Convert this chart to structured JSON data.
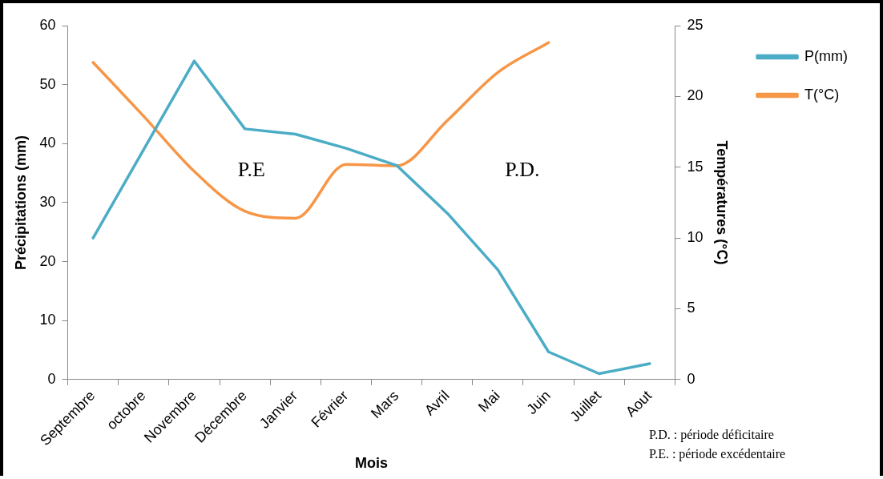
{
  "chart_data": {
    "type": "line",
    "xlabel": "Mois",
    "ylabel": "Précipitations (mm)",
    "y2label": "Températures (°C)",
    "categories": [
      "Septembre",
      "octobre",
      "Novembre",
      "Décembre",
      "Janvier",
      "Février",
      "Mars",
      "Avril",
      "Mai",
      "Juin",
      "Juillet",
      "Aout"
    ],
    "series": [
      {
        "name": "P(mm)",
        "color": "#4bacc6",
        "values": [
          24,
          39,
          54,
          42.5,
          41.6,
          39.2,
          36.3,
          28.2,
          18.6,
          4.7,
          1,
          2.7
        ]
      },
      {
        "name": "T(°C)",
        "color": "#f79646",
        "axis": "y2",
        "values": [
          22.4,
          18.6,
          14.7,
          11.9,
          11.4,
          15.2,
          15.1,
          18.3,
          21.7,
          23.8,
          null,
          null
        ]
      }
    ],
    "ylim": [
      0,
      60
    ],
    "yticks": [
      0,
      10,
      20,
      30,
      40,
      50,
      60
    ],
    "y2lim": [
      0,
      25
    ],
    "y2ticks": [
      0,
      5,
      10,
      15,
      20,
      25
    ],
    "grid": false,
    "legend": "right",
    "marker": "none",
    "line_style": "solid",
    "annotations": [
      "P.E",
      "P.D.",
      "P.D. : période déficitaire",
      "P.E. : période excédentaire"
    ]
  }
}
